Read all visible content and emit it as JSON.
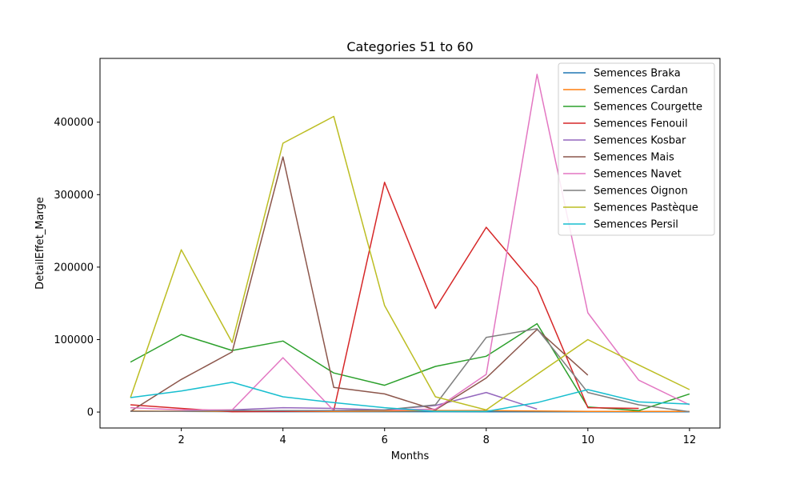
{
  "chart_data": {
    "type": "line",
    "title": "Categories 51 to 60",
    "xlabel": "Months",
    "ylabel": "DetailEffet_Marge",
    "xlim": [
      0.4,
      12.6
    ],
    "ylim": [
      -22000,
      488000
    ],
    "xticks": [
      2,
      4,
      6,
      8,
      10,
      12
    ],
    "yticks": [
      0,
      100000,
      200000,
      300000,
      400000
    ],
    "legend_position": "top-right",
    "series": [
      {
        "name": "Semences Braka",
        "color": "#1f77b4",
        "x": [
          1,
          2,
          3,
          4,
          5,
          6,
          7,
          8,
          9,
          10,
          11,
          12
        ],
        "values": [
          1000,
          800,
          600,
          500,
          500,
          500,
          500,
          400,
          400,
          300,
          300,
          300
        ]
      },
      {
        "name": "Semences Cardan",
        "color": "#ff7f0e",
        "x": [
          1,
          2,
          3,
          4,
          5,
          6,
          7,
          8,
          9,
          10,
          11,
          12
        ],
        "values": [
          1500,
          1200,
          1000,
          1000,
          1000,
          1500,
          2000,
          2000,
          1500,
          1000,
          1000,
          800
        ]
      },
      {
        "name": "Semences Courgette",
        "color": "#2ca02c",
        "x": [
          1,
          2,
          3,
          4,
          5,
          6,
          7,
          8,
          9,
          10,
          11,
          12
        ],
        "values": [
          69000,
          107000,
          85000,
          98000,
          54000,
          37000,
          63000,
          77000,
          122000,
          7000,
          2000,
          25000
        ]
      },
      {
        "name": "Semences Fenouil",
        "color": "#d62728",
        "x": [
          1,
          2,
          3,
          4,
          5,
          6,
          7,
          8,
          9,
          10,
          11
        ],
        "values": [
          10000,
          5000,
          500,
          1000,
          2000,
          317000,
          143000,
          255000,
          172000,
          6000,
          5000
        ]
      },
      {
        "name": "Semences Kosbar",
        "color": "#9467bd",
        "x": [
          1,
          2,
          3,
          4,
          5,
          6,
          7,
          8,
          9
        ],
        "values": [
          1000,
          1000,
          3000,
          6000,
          5000,
          3000,
          9000,
          27000,
          4000
        ]
      },
      {
        "name": "Semences Mais",
        "color": "#8c564b",
        "x": [
          1,
          2,
          3,
          4,
          5,
          6,
          7,
          8,
          9,
          10
        ],
        "values": [
          1000,
          45000,
          83000,
          352000,
          34000,
          25000,
          3000,
          47000,
          114000,
          51000
        ]
      },
      {
        "name": "Semences Navet",
        "color": "#e377c2",
        "x": [
          1,
          2,
          3,
          4,
          5,
          6,
          7,
          8,
          9,
          10,
          11,
          12
        ],
        "values": [
          6000,
          3000,
          3000,
          75000,
          2000,
          3000,
          4000,
          52000,
          466000,
          137000,
          44000,
          10000
        ]
      },
      {
        "name": "Semences Oignon",
        "color": "#7f7f7f",
        "x": [
          1,
          2,
          3,
          4,
          5,
          6,
          7,
          8,
          9,
          10,
          11,
          12
        ],
        "values": [
          1000,
          1000,
          2000,
          2000,
          2000,
          3000,
          10000,
          103000,
          115000,
          27000,
          10000,
          500
        ]
      },
      {
        "name": "Semences Pastèque",
        "color": "#bcbd22",
        "x": [
          1,
          2,
          3,
          4,
          5,
          6,
          7,
          8,
          9,
          10,
          11,
          12
        ],
        "values": [
          20000,
          224000,
          96000,
          371000,
          408000,
          147000,
          21000,
          3000,
          52000,
          100000,
          65000,
          31000
        ]
      },
      {
        "name": "Semences Persil",
        "color": "#17becf",
        "x": [
          1,
          2,
          3,
          4,
          5,
          6,
          7,
          8,
          9,
          10,
          11,
          12
        ],
        "values": [
          20000,
          29000,
          41000,
          21000,
          13000,
          6000,
          1000,
          1000,
          13000,
          31000,
          14000,
          11000
        ]
      }
    ]
  }
}
